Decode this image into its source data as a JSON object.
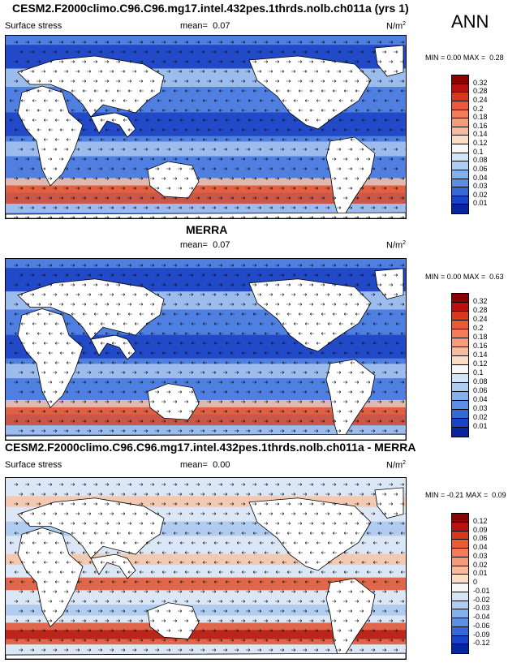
{
  "header": {
    "title": "CESM2.F2000climo.C96.C96.mg17.intel.432pes.1thrds.nolb.ch011a (yrs 1)",
    "season": "ANN"
  },
  "panels": [
    {
      "title": "",
      "variable": "Surface stress",
      "mean_label": "mean=",
      "mean": "0.07",
      "units": "N/m",
      "units_sup": "2",
      "min_label": "MIN =",
      "min": "0.00",
      "max_label": "MAX =",
      "max": "0.28",
      "levels": [
        "0.32",
        "0.28",
        "0.24",
        "0.2",
        "0.18",
        "0.16",
        "0.14",
        "0.12",
        "0.1",
        "0.08",
        "0.06",
        "0.04",
        "0.03",
        "0.02",
        "0.01"
      ],
      "colors": [
        "#8b0000",
        "#b8110f",
        "#d9381f",
        "#ea5a38",
        "#f17c57",
        "#f49d7c",
        "#f8bc9c",
        "#fbdcc5",
        "#f7f7f7",
        "#d5e5f7",
        "#aecdf2",
        "#84b1ec",
        "#5b8fe3",
        "#3569d8",
        "#1845c7",
        "#08249e"
      ]
    },
    {
      "title": "MERRA",
      "variable": "Surface stress",
      "mean_label": "mean=",
      "mean": "0.07",
      "units": "N/m",
      "units_sup": "2",
      "min_label": "MIN =",
      "min": "0.00",
      "max_label": "MAX =",
      "max": "0.63",
      "levels": [
        "0.32",
        "0.28",
        "0.24",
        "0.2",
        "0.18",
        "0.16",
        "0.14",
        "0.12",
        "0.1",
        "0.08",
        "0.06",
        "0.04",
        "0.03",
        "0.02",
        "0.01"
      ],
      "colors": [
        "#8b0000",
        "#b8110f",
        "#d9381f",
        "#ea5a38",
        "#f17c57",
        "#f49d7c",
        "#f8bc9c",
        "#fbdcc5",
        "#f7f7f7",
        "#d5e5f7",
        "#aecdf2",
        "#84b1ec",
        "#5b8fe3",
        "#3569d8",
        "#1845c7",
        "#08249e"
      ]
    },
    {
      "title": "CESM2.F2000climo.C96.C96.mg17.intel.432pes.1thrds.nolb.ch011a - MERRA",
      "variable": "Surface stress",
      "mean_label": "mean=",
      "mean": "0.00",
      "units": "N/m",
      "units_sup": "2",
      "min_label": "MIN =",
      "min": "-0.21",
      "max_label": "MAX =",
      "max": "0.09",
      "levels": [
        "0.12",
        "0.09",
        "0.06",
        "0.04",
        "0.03",
        "0.02",
        "0.01",
        "0",
        "-0.01",
        "-0.02",
        "-0.03",
        "-0.04",
        "-0.06",
        "-0.09",
        "-0.12"
      ],
      "colors": [
        "#8b0000",
        "#b8110f",
        "#d9381f",
        "#ea5a38",
        "#f17c57",
        "#f49d7c",
        "#f8bc9c",
        "#fbdcc5",
        "#f7f7f7",
        "#d5e5f7",
        "#aecdf2",
        "#84b1ec",
        "#5b8fe3",
        "#3569d8",
        "#1845c7",
        "#08249e"
      ]
    }
  ],
  "palette": {
    "ocean_deep": "#1a3fc2",
    "ocean_mid": "#4f7fe0",
    "ocean_light": "#a9c7f0",
    "pos_light": "#f8c3a6",
    "pos_strong": "#e0502e",
    "pos_max": "#b51a12",
    "land": "#ffffff"
  }
}
